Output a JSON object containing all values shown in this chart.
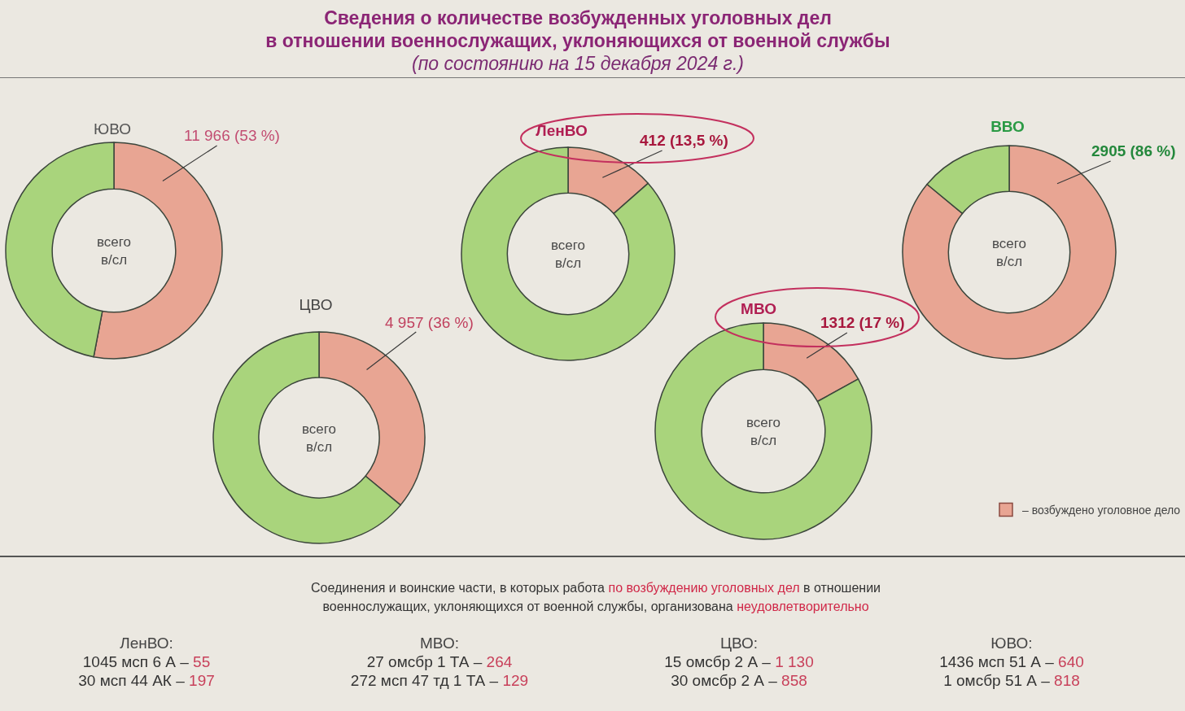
{
  "chart_data": [
    {
      "type": "other",
      "title": "Сведения о количестве возбужденных уголовных дел\nв отношении военнослужащих, уклоняющихся от военной службы",
      "subtitle": "(по состоянию на 15 декабря 2024 г.)"
    },
    {
      "type": "donut",
      "title": "ЮВО",
      "values": [
        53,
        47
      ],
      "colors": [
        "#e8a593",
        "#a9d47c"
      ],
      "value_labels": [
        "11 966 (53 %)",
        null
      ],
      "annotations": [
        "всего\nв/сл"
      ]
    },
    {
      "type": "donut",
      "title": "ЦВО",
      "values": [
        36,
        64
      ],
      "colors": [
        "#e8a593",
        "#a9d47c"
      ],
      "value_labels": [
        "4 957 (36 %)",
        null
      ],
      "annotations": [
        "всего\nв/сл"
      ]
    },
    {
      "type": "donut",
      "title": "ЛенВО",
      "values": [
        13.5,
        86.5
      ],
      "colors": [
        "#e8a593",
        "#a9d47c"
      ],
      "value_labels": [
        "412 (13,5 %)",
        null
      ],
      "annotations": [
        "всего\nв/сл"
      ]
    },
    {
      "type": "donut",
      "title": "МВО",
      "values": [
        17,
        83
      ],
      "colors": [
        "#e8a593",
        "#a9d47c"
      ],
      "value_labels": [
        "1312 (17 %)",
        null
      ],
      "annotations": [
        "всего\nв/сл"
      ]
    },
    {
      "type": "donut",
      "title": "ВВО",
      "categories": [
        "– возбуждено уголовное дело",
        null
      ],
      "values": [
        86,
        14
      ],
      "colors": [
        "#e8a593",
        "#a9d47c"
      ],
      "value_labels": [
        "2905 (86 %)",
        null
      ],
      "annotations": [
        "всего\nв/сл"
      ],
      "legend": "bottom right"
    },
    {
      "type": "other",
      "annotations": [
        "Соединения и воинские части, в которых работа",
        "по возбуждению уголовных дел",
        "в отношении",
        "военнослужащих, уклоняющихся от военной службы, организована",
        "неудовлетворительно",
        "ЛенВО:",
        "1045 мсп 6 А –",
        "55",
        "30 мсп 44 АК –",
        "197",
        "МВО:",
        "27 омсбр 1 ТА –",
        "264",
        "272 мсп 47 тд 1 ТА –",
        "129",
        "ЦВО:",
        "15 омсбр 2 А –",
        "1 130",
        "30 омсбр 2 А –",
        "858",
        "ЮВО:",
        "1436 мсп 51 А –",
        "640",
        "1 омсбр 51 А –",
        "818"
      ]
    }
  ]
}
